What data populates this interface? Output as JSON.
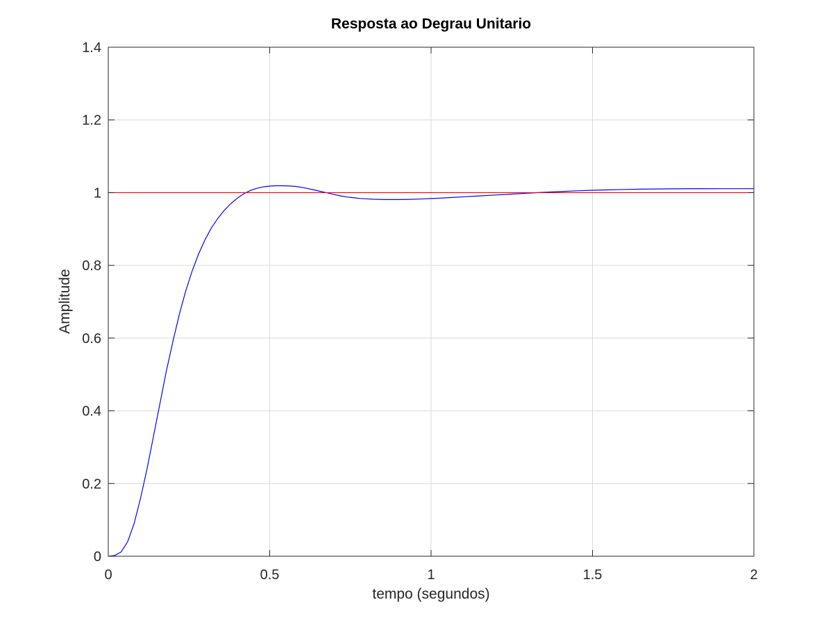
{
  "chart_data": {
    "type": "line",
    "title": "Resposta ao Degrau Unitario",
    "xlabel": "tempo (segundos)",
    "ylabel": "Amplitude",
    "xlim": [
      0,
      2
    ],
    "ylim": [
      0,
      1.4
    ],
    "grid": true,
    "legend": "none",
    "x_ticks": [
      "0",
      "0.5",
      "1",
      "1.5",
      "2"
    ],
    "y_ticks": [
      "0",
      "0.2",
      "0.4",
      "0.6",
      "0.8",
      "1",
      "1.2",
      "1.4"
    ],
    "x_tick_values": [
      0,
      0.5,
      1,
      1.5,
      2
    ],
    "y_tick_values": [
      0,
      0.2,
      0.4,
      0.6,
      0.8,
      1,
      1.2,
      1.4
    ],
    "colors": {
      "response": "#0000ff",
      "reference": "#ff0000",
      "grid": "#d9d9d9",
      "axes": "#262626"
    },
    "series": [
      {
        "color": "#0000ff",
        "x": [
          0,
          0.02,
          0.04,
          0.06,
          0.08,
          0.1,
          0.12,
          0.14,
          0.16,
          0.18,
          0.2,
          0.22,
          0.24,
          0.26,
          0.28,
          0.3,
          0.32,
          0.34,
          0.36,
          0.38,
          0.4,
          0.42,
          0.44,
          0.46,
          0.48,
          0.5,
          0.52,
          0.54,
          0.56,
          0.58,
          0.6,
          0.62,
          0.64,
          0.66,
          0.68,
          0.7,
          0.72,
          0.74,
          0.76,
          0.78,
          0.8,
          0.82,
          0.84,
          0.86,
          0.88,
          0.9,
          0.92,
          0.94,
          0.96,
          0.98,
          1.0,
          1.05,
          1.1,
          1.15,
          1.2,
          1.25,
          1.3,
          1.35,
          1.4,
          1.45,
          1.5,
          1.55,
          1.6,
          1.65,
          1.7,
          1.75,
          1.8,
          1.85,
          1.9,
          1.95,
          2.0
        ],
        "y": [
          0,
          0.002,
          0.012,
          0.04,
          0.09,
          0.16,
          0.24,
          0.33,
          0.42,
          0.51,
          0.59,
          0.665,
          0.73,
          0.785,
          0.832,
          0.871,
          0.904,
          0.93,
          0.952,
          0.97,
          0.985,
          0.997,
          1.006,
          1.012,
          1.016,
          1.018,
          1.019,
          1.019,
          1.0185,
          1.017,
          1.0145,
          1.011,
          1.007,
          1.003,
          0.999,
          0.995,
          0.991,
          0.988,
          0.986,
          0.984,
          0.983,
          0.982,
          0.9815,
          0.981,
          0.981,
          0.981,
          0.9813,
          0.9817,
          0.9823,
          0.983,
          0.9838,
          0.986,
          0.9885,
          0.991,
          0.9935,
          0.996,
          0.9985,
          1.001,
          1.003,
          1.005,
          1.0065,
          1.0078,
          1.0088,
          1.0096,
          1.0102,
          1.0106,
          1.0108,
          1.0109,
          1.011,
          1.011,
          1.011
        ]
      },
      {
        "color": "#ff0000",
        "x": [
          0,
          2
        ],
        "y": [
          1,
          1
        ]
      }
    ]
  }
}
